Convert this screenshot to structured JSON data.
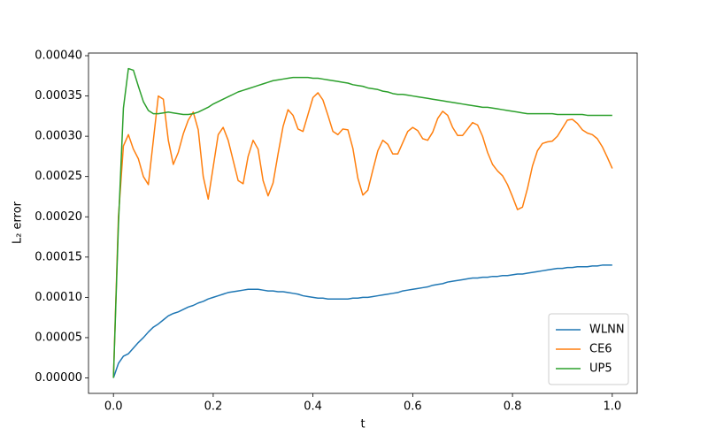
{
  "chart_data": {
    "type": "line",
    "xlabel": "t",
    "ylabel": "L₂ error",
    "x": [
      0,
      0.01,
      0.02,
      0.03,
      0.04,
      0.05,
      0.06,
      0.07,
      0.08,
      0.09,
      0.1,
      0.11,
      0.12,
      0.13,
      0.14,
      0.15,
      0.16,
      0.17,
      0.18,
      0.19,
      0.2,
      0.21,
      0.22,
      0.23,
      0.24,
      0.25,
      0.26,
      0.27,
      0.28,
      0.29,
      0.3,
      0.31,
      0.32,
      0.33,
      0.34,
      0.35,
      0.36,
      0.37,
      0.38,
      0.39,
      0.4,
      0.41,
      0.42,
      0.43,
      0.44,
      0.45,
      0.46,
      0.47,
      0.48,
      0.49,
      0.5,
      0.51,
      0.52,
      0.53,
      0.54,
      0.55,
      0.56,
      0.57,
      0.58,
      0.59,
      0.6,
      0.61,
      0.62,
      0.63,
      0.64,
      0.65,
      0.66,
      0.67,
      0.68,
      0.69,
      0.7,
      0.71,
      0.72,
      0.73,
      0.74,
      0.75,
      0.76,
      0.77,
      0.78,
      0.79,
      0.8,
      0.81,
      0.82,
      0.83,
      0.84,
      0.85,
      0.86,
      0.87,
      0.88,
      0.89,
      0.9,
      0.91,
      0.92,
      0.93,
      0.94,
      0.95,
      0.96,
      0.97,
      0.98,
      0.99,
      1.0
    ],
    "series": [
      {
        "name": "WLNN",
        "color": "#1f77b4",
        "values": [
          0,
          1.8e-05,
          2.7e-05,
          3e-05,
          3.7e-05,
          4.4e-05,
          5e-05,
          5.7e-05,
          6.3e-05,
          6.7e-05,
          7.2e-05,
          7.7e-05,
          8e-05,
          8.2e-05,
          8.5e-05,
          8.8e-05,
          9e-05,
          9.3e-05,
          9.5e-05,
          9.8e-05,
          0.0001,
          0.000102,
          0.000104,
          0.000106,
          0.000107,
          0.000108,
          0.000109,
          0.00011,
          0.00011,
          0.00011,
          0.000109,
          0.000108,
          0.000108,
          0.000107,
          0.000107,
          0.000106,
          0.000105,
          0.000104,
          0.000102,
          0.000101,
          0.0001,
          9.9e-05,
          9.9e-05,
          9.8e-05,
          9.8e-05,
          9.8e-05,
          9.8e-05,
          9.8e-05,
          9.9e-05,
          9.9e-05,
          0.0001,
          0.0001,
          0.000101,
          0.000102,
          0.000103,
          0.000104,
          0.000105,
          0.000106,
          0.000108,
          0.000109,
          0.00011,
          0.000111,
          0.000112,
          0.000113,
          0.000115,
          0.000116,
          0.000117,
          0.000119,
          0.00012,
          0.000121,
          0.000122,
          0.000123,
          0.000124,
          0.000124,
          0.000125,
          0.000125,
          0.000126,
          0.000126,
          0.000127,
          0.000127,
          0.000128,
          0.000129,
          0.000129,
          0.00013,
          0.000131,
          0.000132,
          0.000133,
          0.000134,
          0.000135,
          0.000136,
          0.000136,
          0.000137,
          0.000137,
          0.000138,
          0.000138,
          0.000138,
          0.000139,
          0.000139,
          0.00014,
          0.00014,
          0.00014
        ]
      },
      {
        "name": "CE6",
        "color": "#ff7f0e",
        "values": [
          0,
          0.0002,
          0.000288,
          0.000302,
          0.000284,
          0.000272,
          0.00025,
          0.00024,
          0.000295,
          0.00035,
          0.000346,
          0.000295,
          0.000265,
          0.00028,
          0.000303,
          0.00032,
          0.00033,
          0.000308,
          0.00025,
          0.000222,
          0.000262,
          0.000302,
          0.000311,
          0.000295,
          0.00027,
          0.000245,
          0.000241,
          0.000275,
          0.000295,
          0.000284,
          0.000245,
          0.000226,
          0.000242,
          0.000278,
          0.000312,
          0.000333,
          0.000326,
          0.000309,
          0.000306,
          0.000327,
          0.000348,
          0.000354,
          0.000345,
          0.000326,
          0.000306,
          0.000302,
          0.000309,
          0.000308,
          0.000285,
          0.000248,
          0.000227,
          0.000233,
          0.000258,
          0.000282,
          0.000295,
          0.00029,
          0.000278,
          0.000278,
          0.000292,
          0.000306,
          0.000311,
          0.000307,
          0.000297,
          0.000295,
          0.000305,
          0.000322,
          0.000331,
          0.000326,
          0.000311,
          0.000301,
          0.000301,
          0.000309,
          0.000317,
          0.000314,
          0.0003,
          0.00028,
          0.000265,
          0.000257,
          0.000251,
          0.00024,
          0.000225,
          0.000209,
          0.000212,
          0.000235,
          0.000263,
          0.000282,
          0.000291,
          0.000293,
          0.000294,
          0.0003,
          0.00031,
          0.00032,
          0.000321,
          0.000316,
          0.000308,
          0.000304,
          0.000302,
          0.000297,
          0.000287,
          0.000274,
          0.00026
        ]
      },
      {
        "name": "UP5",
        "color": "#2ca02c",
        "values": [
          0,
          0.00019,
          0.000335,
          0.000384,
          0.000382,
          0.000362,
          0.000343,
          0.000332,
          0.000328,
          0.000328,
          0.000329,
          0.00033,
          0.000329,
          0.000328,
          0.000327,
          0.000327,
          0.000328,
          0.00033,
          0.000333,
          0.000336,
          0.00034,
          0.000343,
          0.000346,
          0.000349,
          0.000352,
          0.000355,
          0.000357,
          0.000359,
          0.000361,
          0.000363,
          0.000365,
          0.000367,
          0.000369,
          0.00037,
          0.000371,
          0.000372,
          0.000373,
          0.000373,
          0.000373,
          0.000373,
          0.000372,
          0.000372,
          0.000371,
          0.00037,
          0.000369,
          0.000368,
          0.000367,
          0.000366,
          0.000364,
          0.000363,
          0.000362,
          0.00036,
          0.000359,
          0.000358,
          0.000356,
          0.000355,
          0.000353,
          0.000352,
          0.000352,
          0.000351,
          0.00035,
          0.000349,
          0.000348,
          0.000347,
          0.000346,
          0.000345,
          0.000344,
          0.000343,
          0.000342,
          0.000341,
          0.00034,
          0.000339,
          0.000338,
          0.000337,
          0.000336,
          0.000336,
          0.000335,
          0.000334,
          0.000333,
          0.000332,
          0.000331,
          0.00033,
          0.000329,
          0.000328,
          0.000328,
          0.000328,
          0.000328,
          0.000328,
          0.000328,
          0.000327,
          0.000327,
          0.000327,
          0.000327,
          0.000327,
          0.000327,
          0.000326,
          0.000326,
          0.000326,
          0.000326,
          0.000326,
          0.000326
        ]
      }
    ],
    "xlim": [
      -0.05,
      1.05
    ],
    "xticks": [
      {
        "value": 0,
        "label": "0.0"
      },
      0.2,
      0.4,
      0.6,
      0.8,
      {
        "value": 1,
        "label": "1.0"
      }
    ],
    "ylim": [
      -1.92e-05,
      0.0004033
    ],
    "yticks": [
      {
        "value": 0,
        "label": "0.00000"
      },
      {
        "value": 5e-05,
        "label": "0.00005"
      },
      {
        "value": 0.0001,
        "label": "0.00010"
      },
      {
        "value": 0.00015,
        "label": "0.00015"
      },
      {
        "value": 0.0002,
        "label": "0.00020"
      },
      {
        "value": 0.00025,
        "label": "0.00025"
      },
      {
        "value": 0.0003,
        "label": "0.00030"
      },
      {
        "value": 0.00035,
        "label": "0.00035"
      },
      {
        "value": 0.0004,
        "label": "0.00040"
      }
    ],
    "legend": "lower right",
    "grid": false
  }
}
